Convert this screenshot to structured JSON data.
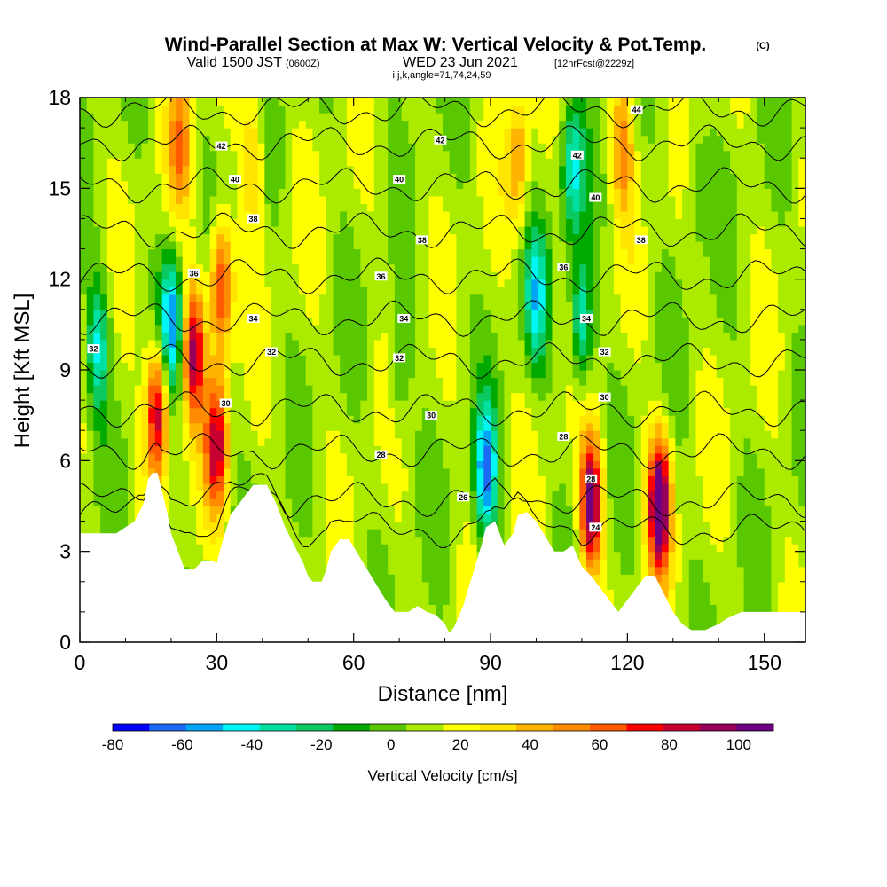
{
  "header": {
    "title": "Wind-Parallel Section at Max W: Vertical Velocity & Pot.Temp.",
    "copyright": "(C)",
    "valid_prefix": "Valid 1500 JST",
    "valid_utc": "(0600Z)",
    "valid_date": "WED 23 Jun 2021",
    "forecast": "[12hrFcst@2229z]",
    "indices": "i,j,k,angle=71,74,24,59"
  },
  "chart_data": {
    "type": "heatmap",
    "title": "Wind-Parallel Section at Max W: Vertical Velocity & Pot.Temp.",
    "xlabel": "Distance [nm]",
    "ylabel": "Height [Kft MSL]",
    "xlim": [
      0,
      159
    ],
    "ylim": [
      0,
      18
    ],
    "xticks": [
      "0",
      "30",
      "60",
      "90",
      "120",
      "150"
    ],
    "yticks": [
      "0",
      "3",
      "6",
      "9",
      "12",
      "15",
      "18"
    ],
    "colorbar": {
      "label": "Vertical Velocity [cm/s]",
      "min": -80,
      "max": 110,
      "step": 10,
      "tick_labels": [
        "-80",
        "-60",
        "-40",
        "-20",
        "0",
        "20",
        "40",
        "60",
        "80",
        "100"
      ],
      "colors": [
        "#0000ff",
        "#1a6af5",
        "#00a5f5",
        "#00f5f5",
        "#00e0a0",
        "#0cc860",
        "#00aa00",
        "#5ac800",
        "#aaeb00",
        "#ffff00",
        "#ffe500",
        "#ffb400",
        "#ff8c00",
        "#ff5a00",
        "#ff0000",
        "#c80032",
        "#96005a",
        "#6e0082"
      ]
    },
    "terrain": [
      [
        0,
        3.6
      ],
      [
        4,
        3.6
      ],
      [
        8,
        3.6
      ],
      [
        10,
        3.8
      ],
      [
        12,
        4.0
      ],
      [
        14,
        4.6
      ],
      [
        15,
        5.4
      ],
      [
        16,
        5.6
      ],
      [
        17,
        5.6
      ],
      [
        18,
        5.0
      ],
      [
        19,
        4.4
      ],
      [
        20,
        3.6
      ],
      [
        21,
        3.2
      ],
      [
        22,
        2.8
      ],
      [
        23,
        2.4
      ],
      [
        25,
        2.4
      ],
      [
        27,
        2.7
      ],
      [
        29,
        2.7
      ],
      [
        30,
        2.6
      ],
      [
        31,
        3.2
      ],
      [
        33,
        4.2
      ],
      [
        36,
        4.8
      ],
      [
        38,
        5.2
      ],
      [
        41,
        5.2
      ],
      [
        43,
        4.6
      ],
      [
        45,
        3.8
      ],
      [
        47,
        3.2
      ],
      [
        49,
        2.6
      ],
      [
        50,
        2.2
      ],
      [
        51,
        2.0
      ],
      [
        53,
        2.0
      ],
      [
        54,
        2.4
      ],
      [
        55,
        3.0
      ],
      [
        57,
        3.4
      ],
      [
        59,
        3.4
      ],
      [
        61,
        2.9
      ],
      [
        63,
        2.4
      ],
      [
        65,
        1.9
      ],
      [
        67,
        1.4
      ],
      [
        69,
        1.0
      ],
      [
        72,
        1.0
      ],
      [
        74,
        1.2
      ],
      [
        76,
        1.0
      ],
      [
        78,
        0.9
      ],
      [
        80,
        0.6
      ],
      [
        81,
        0.3
      ],
      [
        82,
        0.5
      ],
      [
        84,
        1.2
      ],
      [
        86,
        2.2
      ],
      [
        88,
        3.2
      ],
      [
        89,
        3.8
      ],
      [
        91,
        4.0
      ],
      [
        92,
        3.6
      ],
      [
        93,
        3.2
      ],
      [
        95,
        3.6
      ],
      [
        96,
        4.2
      ],
      [
        98,
        4.3
      ],
      [
        100,
        4.0
      ],
      [
        102,
        3.5
      ],
      [
        104,
        3.0
      ],
      [
        106,
        3.0
      ],
      [
        108,
        3.2
      ],
      [
        110,
        2.5
      ],
      [
        112,
        2.2
      ],
      [
        114,
        1.8
      ],
      [
        116,
        1.4
      ],
      [
        118,
        1.0
      ],
      [
        120,
        1.4
      ],
      [
        122,
        1.8
      ],
      [
        124,
        2.2
      ],
      [
        126,
        2.2
      ],
      [
        128,
        1.6
      ],
      [
        130,
        1.0
      ],
      [
        132,
        0.6
      ],
      [
        134,
        0.4
      ],
      [
        137,
        0.4
      ],
      [
        140,
        0.6
      ],
      [
        142,
        0.8
      ],
      [
        145,
        1.0
      ],
      [
        150,
        1.0
      ],
      [
        159,
        1.0
      ]
    ],
    "theta_isentropes": [
      {
        "theta": 24,
        "height": 3.7
      },
      {
        "theta": 26,
        "height": 4.7
      },
      {
        "theta": 28,
        "height": 6.3
      },
      {
        "theta": 30,
        "height": 7.7
      },
      {
        "theta": 32,
        "height": 9.3
      },
      {
        "theta": 34,
        "height": 10.7
      },
      {
        "theta": 36,
        "height": 12.1
      },
      {
        "theta": 38,
        "height": 13.6
      },
      {
        "theta": 40,
        "height": 15.1
      },
      {
        "theta": 42,
        "height": 16.5
      },
      {
        "theta": 44,
        "height": 17.6
      }
    ],
    "contour_labels": [
      {
        "text": "42",
        "x": 31,
        "y": 16.4
      },
      {
        "text": "42",
        "x": 79,
        "y": 16.6
      },
      {
        "text": "42",
        "x": 109,
        "y": 16.1
      },
      {
        "text": "44",
        "x": 122,
        "y": 17.6
      },
      {
        "text": "40",
        "x": 34,
        "y": 15.3
      },
      {
        "text": "40",
        "x": 70,
        "y": 15.3
      },
      {
        "text": "40",
        "x": 113,
        "y": 14.7
      },
      {
        "text": "38",
        "x": 38,
        "y": 14.0
      },
      {
        "text": "38",
        "x": 75,
        "y": 13.3
      },
      {
        "text": "38",
        "x": 123,
        "y": 13.3
      },
      {
        "text": "36",
        "x": 25,
        "y": 12.2
      },
      {
        "text": "36",
        "x": 66,
        "y": 12.1
      },
      {
        "text": "36",
        "x": 106,
        "y": 12.4
      },
      {
        "text": "34",
        "x": 38,
        "y": 10.7
      },
      {
        "text": "34",
        "x": 71,
        "y": 10.7
      },
      {
        "text": "34",
        "x": 111,
        "y": 10.7
      },
      {
        "text": "32",
        "x": 3,
        "y": 9.7
      },
      {
        "text": "32",
        "x": 42,
        "y": 9.6
      },
      {
        "text": "32",
        "x": 70,
        "y": 9.4
      },
      {
        "text": "32",
        "x": 115,
        "y": 9.6
      },
      {
        "text": "30",
        "x": 32,
        "y": 7.9
      },
      {
        "text": "30",
        "x": 77,
        "y": 7.5
      },
      {
        "text": "30",
        "x": 115,
        "y": 8.1
      },
      {
        "text": "28",
        "x": 66,
        "y": 6.2
      },
      {
        "text": "28",
        "x": 106,
        "y": 6.8
      },
      {
        "text": "28",
        "x": 112,
        "y": 5.4
      },
      {
        "text": "26",
        "x": 84,
        "y": 4.8
      },
      {
        "text": "24",
        "x": 113,
        "y": 3.8
      }
    ],
    "w_features": [
      {
        "x": 17,
        "z": 7.6,
        "w": 80
      },
      {
        "x": 25,
        "z": 9.6,
        "w": 75
      },
      {
        "x": 30,
        "z": 6.5,
        "w": 70
      },
      {
        "x": 31,
        "z": 11.8,
        "w": 65
      },
      {
        "x": 20,
        "z": 10.6,
        "w": -60
      },
      {
        "x": 4,
        "z": 9.8,
        "w": -45
      },
      {
        "x": 89,
        "z": 5.6,
        "w": -65
      },
      {
        "x": 100,
        "z": 11.4,
        "w": -45
      },
      {
        "x": 110,
        "z": 10.6,
        "w": -50
      },
      {
        "x": 112,
        "z": 4.6,
        "w": 90
      },
      {
        "x": 127,
        "z": 4.6,
        "w": 100
      },
      {
        "x": 22,
        "z": 16.5,
        "w": 40
      },
      {
        "x": 38,
        "z": 16.0,
        "w": 30
      },
      {
        "x": 96,
        "z": 16.0,
        "w": 35
      },
      {
        "x": 108,
        "z": 15.6,
        "w": -45
      },
      {
        "x": 119,
        "z": 16.5,
        "w": 40
      },
      {
        "x": 70,
        "z": 9.0,
        "w": -20
      },
      {
        "x": 135,
        "z": 15.0,
        "w": -15
      }
    ]
  }
}
